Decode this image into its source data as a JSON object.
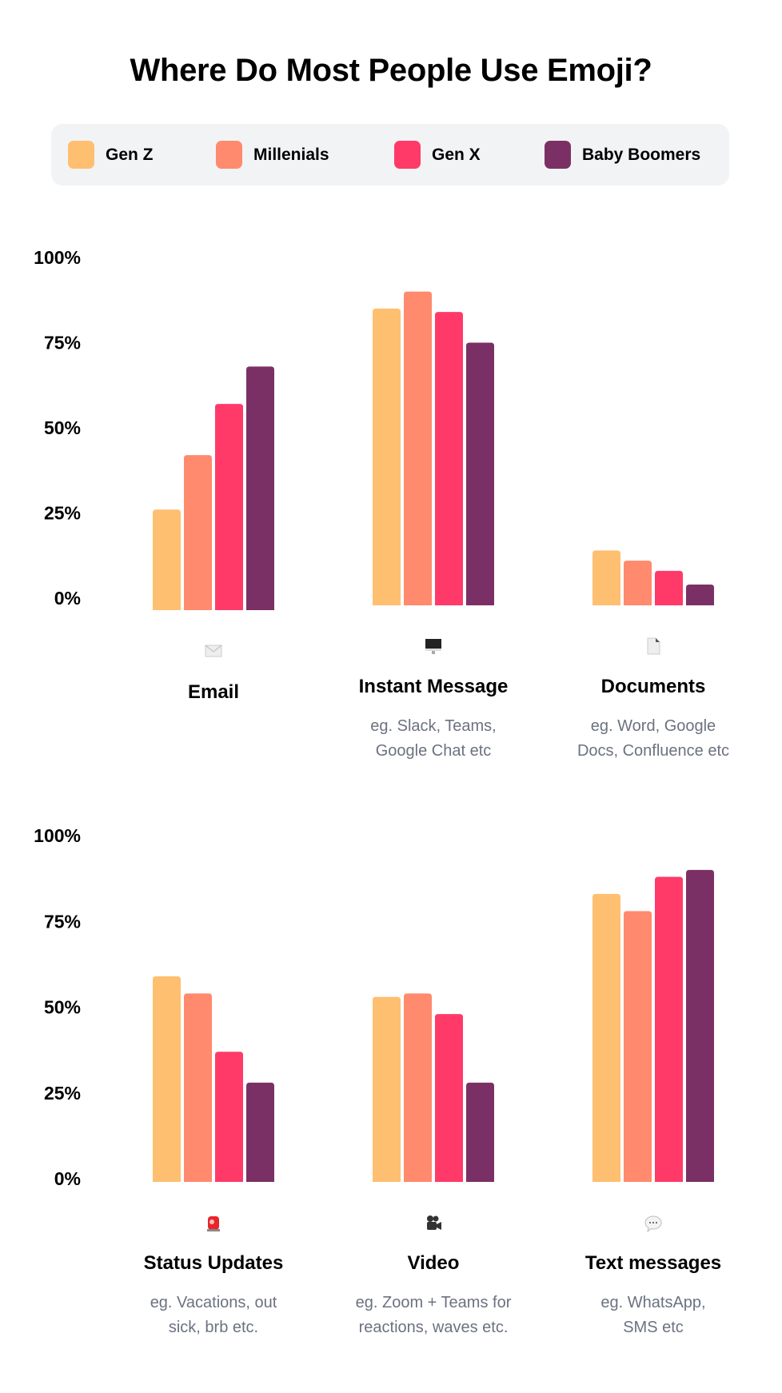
{
  "title": "Where Do Most People Use Emoji?",
  "legend": [
    {
      "label": "Gen Z",
      "color": "#ffbf70"
    },
    {
      "label": "Millenials",
      "color": "#ff8a6d"
    },
    {
      "label": "Gen X",
      "color": "#ff3a69"
    },
    {
      "label": "Baby Boomers",
      "color": "#7b3065"
    }
  ],
  "chart_data": [
    {
      "type": "bar",
      "ylim": [
        0,
        100
      ],
      "yticks": [
        "100%",
        "75%",
        "50%",
        "25%",
        "0%"
      ],
      "series_names": [
        "Gen Z",
        "Millenials",
        "Gen X",
        "Baby Boomers"
      ],
      "groups": [
        {
          "label": "Email",
          "subtitle": [],
          "icon": "envelope-icon",
          "values": [
            26,
            42,
            57,
            68
          ]
        },
        {
          "label": "Instant Message",
          "subtitle": [
            "eg. Slack, Teams,",
            "Google Chat etc"
          ],
          "icon": "desktop-computer-icon",
          "values": [
            85,
            90,
            84,
            75
          ]
        },
        {
          "label": "Documents",
          "subtitle": [
            "eg. Word, Google",
            "Docs, Confluence etc"
          ],
          "icon": "document-icon",
          "values": [
            14,
            11,
            8,
            4
          ]
        }
      ]
    },
    {
      "type": "bar",
      "ylim": [
        0,
        100
      ],
      "yticks": [
        "100%",
        "75%",
        "50%",
        "25%",
        "0%"
      ],
      "series_names": [
        "Gen Z",
        "Millenials",
        "Gen X",
        "Baby Boomers"
      ],
      "groups": [
        {
          "label": "Status Updates",
          "subtitle": [
            "eg. Vacations, out",
            "sick, brb etc."
          ],
          "icon": "rotating-light-icon",
          "values": [
            59,
            54,
            37,
            28
          ]
        },
        {
          "label": "Video",
          "subtitle": [
            "eg. Zoom + Teams for",
            "reactions, waves etc."
          ],
          "icon": "movie-camera-icon",
          "values": [
            53,
            54,
            48,
            28
          ]
        },
        {
          "label": "Text messages",
          "subtitle": [
            "eg. WhatsApp,",
            "SMS etc"
          ],
          "icon": "speech-bubble-icon",
          "values": [
            83,
            78,
            88,
            90
          ]
        }
      ]
    }
  ]
}
